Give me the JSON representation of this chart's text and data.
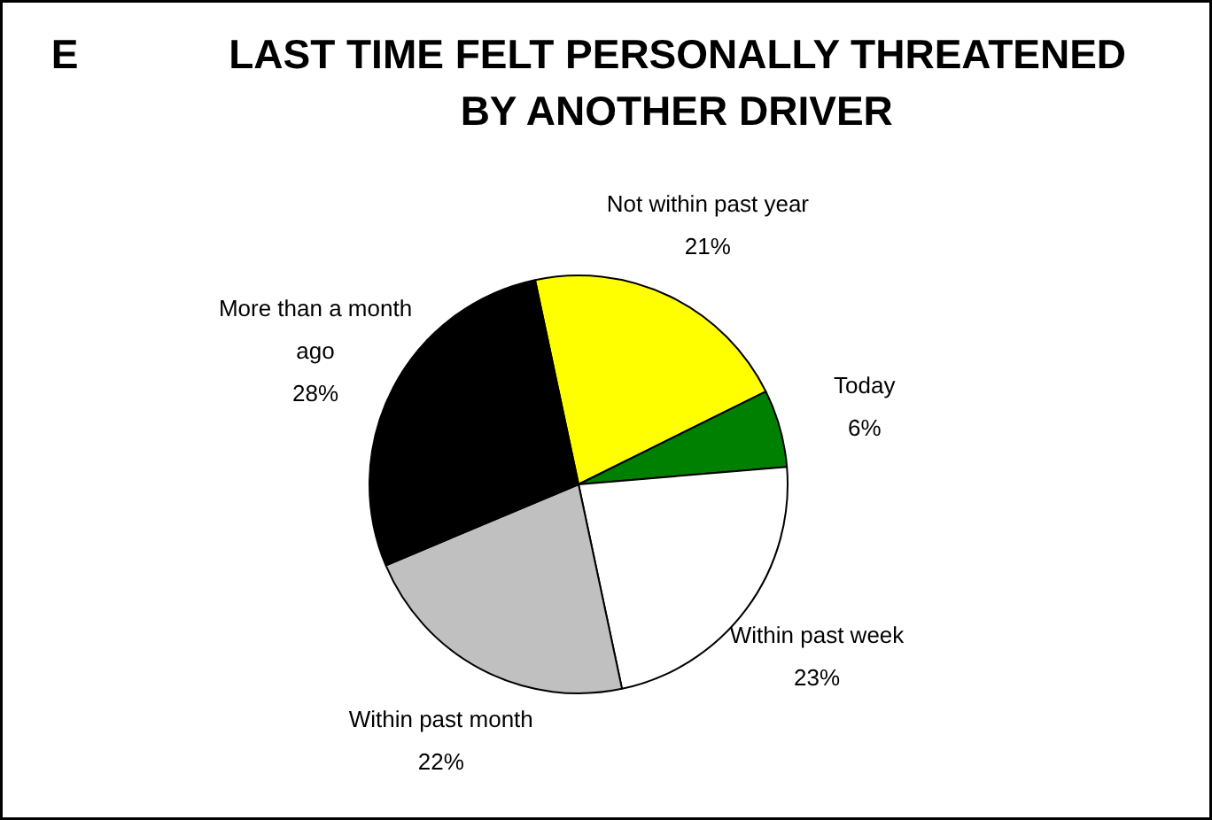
{
  "chart_data": {
    "type": "pie",
    "title": "LAST TIME FELT PERSONALLY THREATENED BY ANOTHER DRIVER",
    "annotations": [
      "E"
    ],
    "categories": [
      "Not within past year",
      "Today",
      "Within past week",
      "Within past month",
      "More than a month ago"
    ],
    "values": [
      21,
      6,
      23,
      22,
      28
    ],
    "colors": [
      "#ffff00",
      "#008000",
      "#ffffff",
      "#c0c0c0",
      "#000000"
    ],
    "value_labels": [
      "21%",
      "6%",
      "23%",
      "22%",
      "28%"
    ]
  }
}
